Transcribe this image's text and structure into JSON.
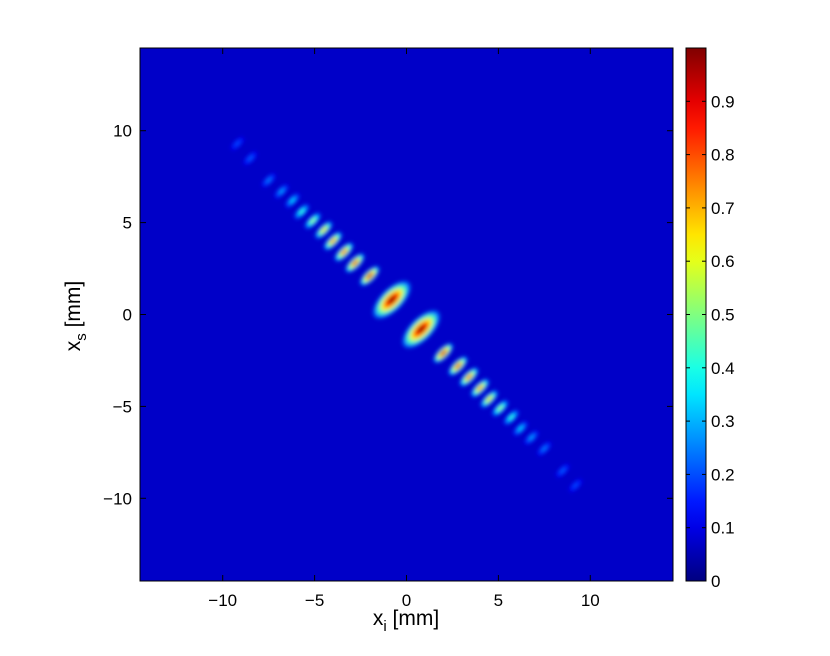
{
  "chart_data": {
    "type": "heatmap",
    "title": "",
    "xlabel": {
      "base": "x",
      "sub": "i",
      "unit": " [mm]"
    },
    "ylabel": {
      "base": "x",
      "sub": "s",
      "unit": " [mm]"
    },
    "xlim": [
      -14.5,
      14.5
    ],
    "ylim": [
      -14.5,
      14.5
    ],
    "x_ticks": [
      -10,
      -5,
      0,
      5,
      10
    ],
    "y_ticks": [
      -10,
      -5,
      0,
      5,
      10
    ],
    "x_tick_labels": [
      "−10",
      "−5",
      "0",
      "5",
      "10"
    ],
    "y_tick_labels": [
      "−10",
      "−5",
      "0",
      "5",
      "10"
    ],
    "colormap": "jet",
    "color_range": [
      0,
      1
    ],
    "colorbar_ticks": [
      0,
      0.1,
      0.2,
      0.3,
      0.4,
      0.5,
      0.6,
      0.7,
      0.8,
      0.9
    ],
    "colorbar_tick_labels": [
      "0",
      "0.1",
      "0.2",
      "0.3",
      "0.4",
      "0.5",
      "0.6",
      "0.7",
      "0.8",
      "0.9"
    ],
    "background_color": "#0000c8",
    "grid": false,
    "features": [
      {
        "x": -0.8,
        "y": 0.8,
        "value": 1.0
      },
      {
        "x": 0.8,
        "y": -0.8,
        "value": 1.0
      },
      {
        "x": -2.0,
        "y": 2.1,
        "value": 0.92
      },
      {
        "x": 2.0,
        "y": -2.1,
        "value": 0.92
      },
      {
        "x": -2.8,
        "y": 2.8,
        "value": 0.85
      },
      {
        "x": 2.8,
        "y": -2.8,
        "value": 0.85
      },
      {
        "x": -3.4,
        "y": 3.4,
        "value": 0.8
      },
      {
        "x": 3.4,
        "y": -3.4,
        "value": 0.8
      },
      {
        "x": -4.0,
        "y": 4.0,
        "value": 0.75
      },
      {
        "x": 4.0,
        "y": -4.0,
        "value": 0.75
      },
      {
        "x": -4.5,
        "y": 4.6,
        "value": 0.65
      },
      {
        "x": 4.5,
        "y": -4.6,
        "value": 0.65
      },
      {
        "x": -5.1,
        "y": 5.1,
        "value": 0.5
      },
      {
        "x": 5.1,
        "y": -5.1,
        "value": 0.5
      },
      {
        "x": -5.7,
        "y": 5.6,
        "value": 0.38
      },
      {
        "x": 5.7,
        "y": -5.6,
        "value": 0.38
      },
      {
        "x": -6.2,
        "y": 6.2,
        "value": 0.28
      },
      {
        "x": 6.2,
        "y": -6.2,
        "value": 0.28
      },
      {
        "x": -6.8,
        "y": 6.7,
        "value": 0.22
      },
      {
        "x": 6.8,
        "y": -6.7,
        "value": 0.22
      },
      {
        "x": -7.5,
        "y": 7.3,
        "value": 0.18
      },
      {
        "x": 7.5,
        "y": -7.3,
        "value": 0.18
      },
      {
        "x": -8.5,
        "y": 8.5,
        "value": 0.14
      },
      {
        "x": 8.5,
        "y": -8.5,
        "value": 0.14
      },
      {
        "x": -9.2,
        "y": 9.3,
        "value": 0.12
      },
      {
        "x": 9.2,
        "y": -9.3,
        "value": 0.12
      }
    ]
  }
}
